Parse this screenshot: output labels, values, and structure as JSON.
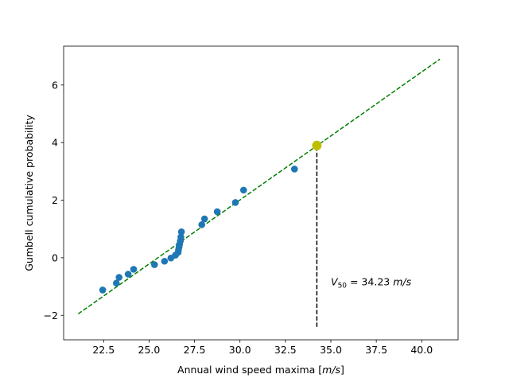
{
  "chart_data": {
    "type": "scatter",
    "title": "",
    "xlabel": "Annual wind speed maxima [m/s]",
    "xlabel_parts": {
      "text": "Annual wind speed maxima [",
      "unit": "m/s",
      "close": "]"
    },
    "ylabel": "Gumbell cumulative probability",
    "xlim": [
      20.3,
      42.0
    ],
    "ylim": [
      -2.85,
      7.35
    ],
    "xticks": [
      22.5,
      25.0,
      27.5,
      30.0,
      32.5,
      35.0,
      37.5,
      40.0
    ],
    "xtick_labels": [
      "22.5",
      "25.0",
      "27.5",
      "30.0",
      "32.5",
      "35.0",
      "37.5",
      "40.0"
    ],
    "yticks": [
      -2,
      0,
      2,
      4,
      6
    ],
    "ytick_labels": [
      "−2",
      "0",
      "2",
      "4",
      "6"
    ],
    "grid": false,
    "legend": false,
    "series": [
      {
        "kind": "scatter",
        "color": "#1f77b4",
        "x": [
          22.45,
          23.2,
          23.35,
          23.85,
          24.15,
          25.3,
          25.85,
          26.2,
          26.45,
          26.6,
          26.62,
          26.65,
          26.68,
          26.72,
          26.75,
          26.78,
          27.9,
          28.05,
          28.75,
          29.75,
          30.2,
          33.0
        ],
        "y": [
          -1.12,
          -0.88,
          -0.68,
          -0.57,
          -0.4,
          -0.24,
          -0.12,
          -0.01,
          0.09,
          0.19,
          0.28,
          0.37,
          0.47,
          0.58,
          0.72,
          0.9,
          1.15,
          1.35,
          1.6,
          1.92,
          2.35,
          3.08
        ]
      },
      {
        "kind": "line",
        "style": "dashed",
        "color": "#008000",
        "x": [
          21.1,
          41.0
        ],
        "y": [
          -1.95,
          6.9
        ]
      },
      {
        "kind": "vline",
        "style": "dashed",
        "color": "#000000",
        "x": [
          34.23,
          34.23
        ],
        "y": [
          -2.4,
          3.9
        ]
      },
      {
        "kind": "highlight",
        "color": "#bfbf00",
        "x": [
          34.23
        ],
        "y": [
          3.9
        ]
      }
    ],
    "annotations": [
      {
        "text": "V50 = 34.23 m/s",
        "symbol": "V",
        "subscript": "50",
        "equals": " = 34.23 ",
        "unit": "m/s",
        "x": 35.0,
        "y": -0.85
      }
    ]
  }
}
